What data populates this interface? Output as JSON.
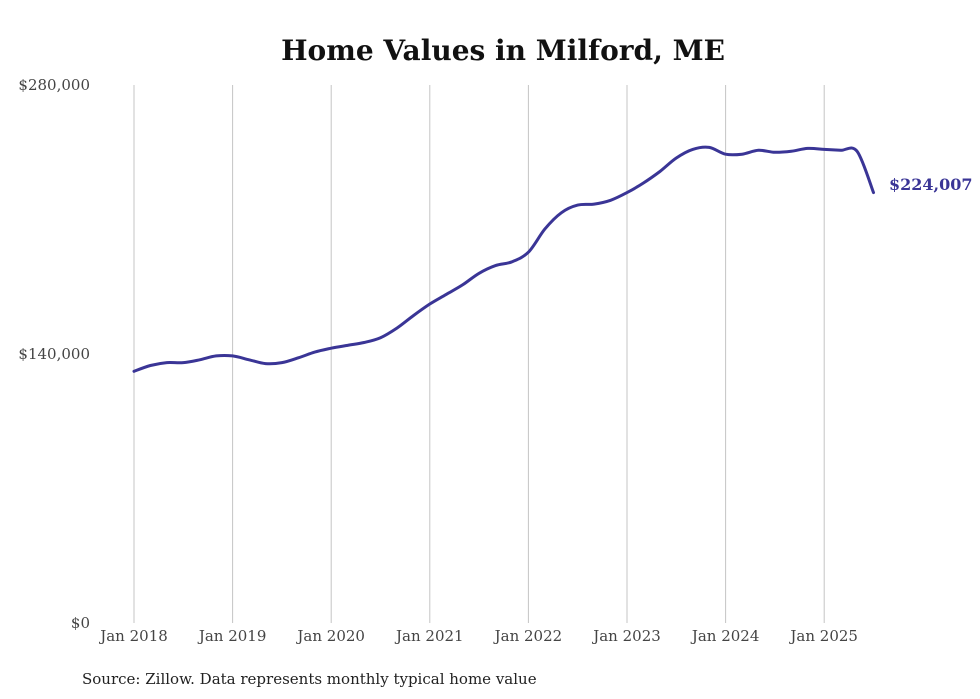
{
  "chart_data": {
    "type": "line",
    "title": "Home Values in Milford, ME",
    "source": "Source: Zillow. Data represents monthly typical home value",
    "ylim": [
      0,
      280000
    ],
    "y_ticks": [
      "$0",
      "$140,000",
      "$280,000"
    ],
    "y_tick_values": [
      0,
      140000,
      280000
    ],
    "x_ticks": [
      "Jan 2018",
      "Jan 2019",
      "Jan 2020",
      "Jan 2021",
      "Jan 2022",
      "Jan 2023",
      "Jan 2024",
      "Jan 2025"
    ],
    "x_tick_values": [
      2018,
      2019,
      2020,
      2021,
      2022,
      2023,
      2024,
      2025
    ],
    "grid": "vertical",
    "series": [
      {
        "color": "#3a3596",
        "end_label": "$224,007",
        "x": [
          2018.0,
          2018.1667,
          2018.3333,
          2018.5,
          2018.6667,
          2018.8333,
          2019.0,
          2019.1667,
          2019.3333,
          2019.5,
          2019.6667,
          2019.8333,
          2020.0,
          2020.1667,
          2020.3333,
          2020.5,
          2020.6667,
          2020.8333,
          2021.0,
          2021.1667,
          2021.3333,
          2021.5,
          2021.6667,
          2021.8333,
          2022.0,
          2022.1667,
          2022.3333,
          2022.5,
          2022.6667,
          2022.8333,
          2023.0,
          2023.1667,
          2023.3333,
          2023.5,
          2023.6667,
          2023.8333,
          2024.0,
          2024.1667,
          2024.3333,
          2024.5,
          2024.6667,
          2024.8333,
          2025.0,
          2025.1667,
          2025.3333,
          2025.5
        ],
        "values": [
          131000,
          134000,
          135500,
          135500,
          137000,
          139000,
          139000,
          137000,
          135000,
          135500,
          138000,
          141000,
          143000,
          144500,
          146000,
          148500,
          153500,
          160000,
          166000,
          171000,
          176000,
          182000,
          186000,
          188000,
          193000,
          205000,
          213500,
          217500,
          218000,
          220000,
          224000,
          229000,
          235000,
          242000,
          246500,
          247500,
          244000,
          244000,
          246000,
          245000,
          245500,
          247000,
          246500,
          246000,
          245500,
          224007
        ]
      }
    ]
  }
}
